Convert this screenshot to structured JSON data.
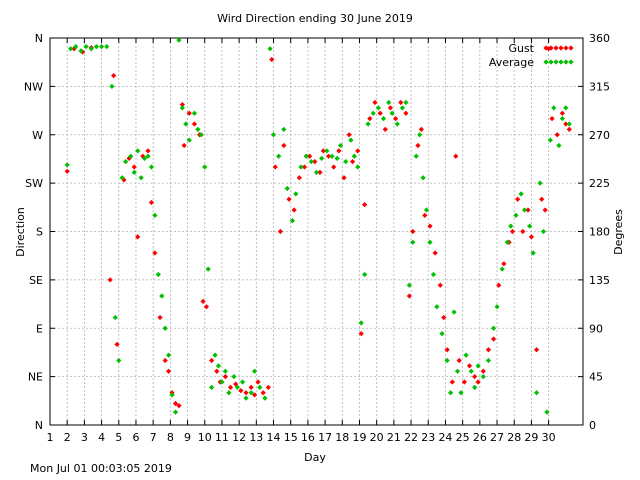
{
  "chart_data": {
    "type": "scatter",
    "title": "Wird Direction ending 30 June 2019",
    "xlabel": "Day",
    "ylabel": "Direction",
    "y2label": "Degrees",
    "xlim": [
      1,
      32
    ],
    "ylim": [
      0,
      360
    ],
    "x_ticks": [
      "1",
      "2",
      "3",
      "4",
      "5",
      "6",
      "7",
      "8",
      "9",
      "10",
      "11",
      "12",
      "13",
      "14",
      "15",
      "16",
      "17",
      "18",
      "19",
      "20",
      "21",
      "22",
      "23",
      "24",
      "25",
      "26",
      "27",
      "28",
      "29",
      "30"
    ],
    "y_ticks_left": [
      {
        "value": 0,
        "label": "N"
      },
      {
        "value": 45,
        "label": "NE"
      },
      {
        "value": 90,
        "label": "E"
      },
      {
        "value": 135,
        "label": "SE"
      },
      {
        "value": 180,
        "label": "S"
      },
      {
        "value": 225,
        "label": "SW"
      },
      {
        "value": 270,
        "label": "W"
      },
      {
        "value": 315,
        "label": "NW"
      },
      {
        "value": 360,
        "label": "N"
      }
    ],
    "y_ticks_right": [
      {
        "value": 0,
        "label": "0"
      },
      {
        "value": 45,
        "label": "45"
      },
      {
        "value": 90,
        "label": "90"
      },
      {
        "value": 135,
        "label": "135"
      },
      {
        "value": 180,
        "label": "180"
      },
      {
        "value": 225,
        "label": "225"
      },
      {
        "value": 270,
        "label": "270"
      },
      {
        "value": 315,
        "label": "315"
      },
      {
        "value": 360,
        "label": "360"
      }
    ],
    "grid": true,
    "legend_position": "top-right",
    "series": [
      {
        "name": "Gust",
        "color": "#ff0000",
        "points": [
          [
            2.0,
            236
          ],
          [
            2.4,
            350
          ],
          [
            2.9,
            347
          ],
          [
            3.4,
            351
          ],
          [
            4.5,
            135
          ],
          [
            4.7,
            325
          ],
          [
            4.9,
            75
          ],
          [
            5.3,
            228
          ],
          [
            5.6,
            248
          ],
          [
            5.9,
            240
          ],
          [
            6.1,
            175
          ],
          [
            6.4,
            250
          ],
          [
            6.7,
            255
          ],
          [
            6.9,
            207
          ],
          [
            7.1,
            160
          ],
          [
            7.4,
            100
          ],
          [
            7.7,
            60
          ],
          [
            7.9,
            50
          ],
          [
            8.1,
            30
          ],
          [
            8.3,
            20
          ],
          [
            8.5,
            18
          ],
          [
            8.7,
            298
          ],
          [
            8.8,
            260
          ],
          [
            9.1,
            290
          ],
          [
            9.4,
            280
          ],
          [
            9.7,
            270
          ],
          [
            9.9,
            115
          ],
          [
            10.1,
            110
          ],
          [
            10.4,
            60
          ],
          [
            10.7,
            50
          ],
          [
            10.9,
            40
          ],
          [
            11.2,
            45
          ],
          [
            11.5,
            35
          ],
          [
            11.8,
            38
          ],
          [
            12.1,
            32
          ],
          [
            12.4,
            30
          ],
          [
            12.7,
            35
          ],
          [
            12.9,
            28
          ],
          [
            13.1,
            40
          ],
          [
            13.4,
            30
          ],
          [
            13.7,
            35
          ],
          [
            13.9,
            340
          ],
          [
            14.1,
            240
          ],
          [
            14.4,
            180
          ],
          [
            14.6,
            260
          ],
          [
            14.9,
            210
          ],
          [
            15.2,
            200
          ],
          [
            15.5,
            230
          ],
          [
            15.8,
            240
          ],
          [
            16.1,
            250
          ],
          [
            16.4,
            245
          ],
          [
            16.7,
            235
          ],
          [
            16.9,
            255
          ],
          [
            17.2,
            250
          ],
          [
            17.5,
            240
          ],
          [
            17.8,
            255
          ],
          [
            18.1,
            230
          ],
          [
            18.4,
            270
          ],
          [
            18.6,
            245
          ],
          [
            18.9,
            255
          ],
          [
            19.1,
            85
          ],
          [
            19.3,
            205
          ],
          [
            19.6,
            285
          ],
          [
            19.9,
            300
          ],
          [
            20.2,
            290
          ],
          [
            20.5,
            275
          ],
          [
            20.8,
            295
          ],
          [
            21.1,
            285
          ],
          [
            21.4,
            300
          ],
          [
            21.7,
            290
          ],
          [
            21.9,
            120
          ],
          [
            22.1,
            180
          ],
          [
            22.4,
            260
          ],
          [
            22.6,
            275
          ],
          [
            22.8,
            195
          ],
          [
            23.1,
            185
          ],
          [
            23.4,
            160
          ],
          [
            23.7,
            130
          ],
          [
            23.9,
            100
          ],
          [
            24.1,
            70
          ],
          [
            24.4,
            40
          ],
          [
            24.6,
            250
          ],
          [
            24.8,
            60
          ],
          [
            25.1,
            40
          ],
          [
            25.4,
            55
          ],
          [
            25.7,
            45
          ],
          [
            25.9,
            40
          ],
          [
            26.2,
            50
          ],
          [
            26.5,
            70
          ],
          [
            26.8,
            80
          ],
          [
            27.1,
            130
          ],
          [
            27.4,
            150
          ],
          [
            27.7,
            170
          ],
          [
            27.9,
            180
          ],
          [
            28.2,
            210
          ],
          [
            28.5,
            180
          ],
          [
            28.8,
            200
          ],
          [
            29.0,
            175
          ],
          [
            29.3,
            70
          ],
          [
            29.6,
            210
          ],
          [
            29.8,
            200
          ],
          [
            30.0,
            350
          ],
          [
            30.2,
            285
          ],
          [
            30.5,
            270
          ],
          [
            30.8,
            290
          ],
          [
            31.0,
            280
          ],
          [
            31.2,
            275
          ]
        ]
      },
      {
        "name": "Average",
        "color": "#00c000",
        "points": [
          [
            2.0,
            242
          ],
          [
            2.2,
            350
          ],
          [
            2.5,
            352
          ],
          [
            2.8,
            348
          ],
          [
            3.1,
            352
          ],
          [
            3.4,
            350
          ],
          [
            3.7,
            352
          ],
          [
            4.0,
            352
          ],
          [
            4.3,
            352
          ],
          [
            4.6,
            315
          ],
          [
            4.8,
            100
          ],
          [
            5.0,
            60
          ],
          [
            5.2,
            230
          ],
          [
            5.4,
            245
          ],
          [
            5.7,
            250
          ],
          [
            5.9,
            235
          ],
          [
            6.1,
            255
          ],
          [
            6.3,
            230
          ],
          [
            6.5,
            248
          ],
          [
            6.7,
            250
          ],
          [
            6.9,
            240
          ],
          [
            7.1,
            195
          ],
          [
            7.3,
            140
          ],
          [
            7.5,
            120
          ],
          [
            7.7,
            90
          ],
          [
            7.9,
            65
          ],
          [
            8.1,
            28
          ],
          [
            8.3,
            12
          ],
          [
            8.5,
            358
          ],
          [
            8.7,
            295
          ],
          [
            8.9,
            280
          ],
          [
            9.1,
            265
          ],
          [
            9.4,
            290
          ],
          [
            9.6,
            275
          ],
          [
            9.8,
            270
          ],
          [
            10.0,
            240
          ],
          [
            10.2,
            145
          ],
          [
            10.4,
            35
          ],
          [
            10.6,
            65
          ],
          [
            10.8,
            55
          ],
          [
            11.0,
            40
          ],
          [
            11.2,
            50
          ],
          [
            11.4,
            30
          ],
          [
            11.7,
            45
          ],
          [
            11.9,
            35
          ],
          [
            12.2,
            40
          ],
          [
            12.4,
            25
          ],
          [
            12.7,
            30
          ],
          [
            12.9,
            50
          ],
          [
            13.2,
            35
          ],
          [
            13.5,
            25
          ],
          [
            13.8,
            350
          ],
          [
            14.0,
            270
          ],
          [
            14.3,
            250
          ],
          [
            14.6,
            275
          ],
          [
            14.8,
            220
          ],
          [
            15.1,
            190
          ],
          [
            15.3,
            215
          ],
          [
            15.6,
            240
          ],
          [
            15.9,
            250
          ],
          [
            16.2,
            245
          ],
          [
            16.5,
            235
          ],
          [
            16.8,
            248
          ],
          [
            17.1,
            255
          ],
          [
            17.4,
            250
          ],
          [
            17.7,
            248
          ],
          [
            17.9,
            260
          ],
          [
            18.2,
            245
          ],
          [
            18.5,
            265
          ],
          [
            18.7,
            250
          ],
          [
            18.9,
            240
          ],
          [
            19.1,
            95
          ],
          [
            19.3,
            140
          ],
          [
            19.5,
            280
          ],
          [
            19.8,
            290
          ],
          [
            20.1,
            295
          ],
          [
            20.4,
            285
          ],
          [
            20.7,
            300
          ],
          [
            20.9,
            290
          ],
          [
            21.2,
            280
          ],
          [
            21.5,
            295
          ],
          [
            21.7,
            300
          ],
          [
            21.9,
            130
          ],
          [
            22.1,
            170
          ],
          [
            22.3,
            250
          ],
          [
            22.5,
            270
          ],
          [
            22.7,
            230
          ],
          [
            22.9,
            200
          ],
          [
            23.1,
            170
          ],
          [
            23.3,
            140
          ],
          [
            23.5,
            110
          ],
          [
            23.8,
            85
          ],
          [
            24.1,
            60
          ],
          [
            24.3,
            30
          ],
          [
            24.5,
            105
          ],
          [
            24.7,
            50
          ],
          [
            24.9,
            30
          ],
          [
            25.2,
            65
          ],
          [
            25.5,
            50
          ],
          [
            25.7,
            35
          ],
          [
            25.9,
            55
          ],
          [
            26.2,
            45
          ],
          [
            26.5,
            60
          ],
          [
            26.8,
            90
          ],
          [
            27.0,
            110
          ],
          [
            27.3,
            145
          ],
          [
            27.6,
            170
          ],
          [
            27.8,
            185
          ],
          [
            28.1,
            195
          ],
          [
            28.4,
            215
          ],
          [
            28.6,
            200
          ],
          [
            28.9,
            185
          ],
          [
            29.1,
            160
          ],
          [
            29.3,
            30
          ],
          [
            29.5,
            225
          ],
          [
            29.7,
            180
          ],
          [
            29.9,
            12
          ],
          [
            30.1,
            265
          ],
          [
            30.3,
            295
          ],
          [
            30.6,
            260
          ],
          [
            30.8,
            285
          ],
          [
            31.0,
            295
          ],
          [
            31.2,
            280
          ]
        ]
      }
    ]
  },
  "footer": {
    "timestamp": "Mon Jul 01 00:03:05 2019"
  }
}
